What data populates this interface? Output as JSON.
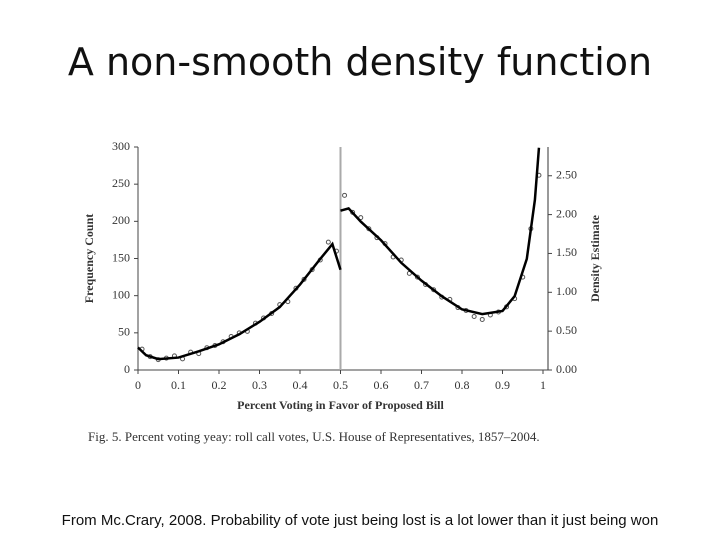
{
  "title": "A non-smooth density function",
  "footer": "From Mc.Crary, 2008. Probability of vote just being lost is a lot lower than it just being won",
  "chart_data": {
    "type": "scatter",
    "caption": "Fig. 5.  Percent voting yeay: roll call votes, U.S. House of Representatives, 1857–2004.",
    "xlabel": "Percent Voting in Favor of Proposed Bill",
    "ylabel": "Frequency Count",
    "y2label": "Density Estimate",
    "xlim": [
      0,
      1
    ],
    "xticks": [
      0,
      0.1,
      0.2,
      0.3,
      0.4,
      0.5,
      0.6,
      0.7,
      0.8,
      0.9,
      1
    ],
    "ylim": [
      0,
      300
    ],
    "yticks": [
      0,
      50,
      100,
      150,
      200,
      250,
      300
    ],
    "y2lim": [
      0,
      2.87
    ],
    "y2ticks": [
      {
        "value": 0,
        "label": "0.00"
      },
      {
        "value": 0.5,
        "label": "0.50"
      },
      {
        "value": 1,
        "label": "1.00"
      },
      {
        "value": 1.5,
        "label": "1.50"
      },
      {
        "value": 2,
        "label": "2.00"
      },
      {
        "value": 2.5,
        "label": "2.50"
      }
    ],
    "vlines": [
      0.5
    ],
    "series": [
      {
        "type": "scatter",
        "color": "#555555",
        "x": [
          0.01,
          0.03,
          0.05,
          0.07,
          0.09,
          0.11,
          0.13,
          0.15,
          0.17,
          0.19,
          0.21,
          0.23,
          0.25,
          0.27,
          0.29,
          0.31,
          0.33,
          0.35,
          0.37,
          0.39,
          0.41,
          0.43,
          0.45,
          0.47,
          0.49,
          0.51,
          0.53,
          0.55,
          0.57,
          0.59,
          0.61,
          0.63,
          0.65,
          0.67,
          0.69,
          0.71,
          0.73,
          0.75,
          0.77,
          0.79,
          0.81,
          0.83,
          0.85,
          0.87,
          0.89,
          0.91,
          0.93,
          0.95,
          0.97,
          0.99
        ],
        "values": [
          28,
          18,
          14,
          16,
          19,
          15,
          24,
          22,
          30,
          33,
          38,
          45,
          50,
          52,
          63,
          70,
          76,
          88,
          92,
          110,
          122,
          135,
          148,
          172,
          160,
          235,
          212,
          205,
          190,
          178,
          170,
          152,
          148,
          130,
          125,
          115,
          108,
          98,
          95,
          84,
          80,
          72,
          68,
          74,
          78,
          85,
          96,
          125,
          190,
          262
        ]
      },
      {
        "type": "line",
        "axis": "y2",
        "color": "#000000",
        "x": [
          0,
          0.02,
          0.05,
          0.1,
          0.15,
          0.2,
          0.25,
          0.3,
          0.35,
          0.4,
          0.45,
          0.48,
          0.5,
          0.5,
          0.5,
          0.52,
          0.55,
          0.6,
          0.65,
          0.7,
          0.75,
          0.8,
          0.85,
          0.9,
          0.93,
          0.96,
          0.98,
          0.99
        ],
        "values": [
          0.29,
          0.19,
          0.14,
          0.16,
          0.24,
          0.33,
          0.46,
          0.62,
          0.81,
          1.1,
          1.43,
          1.62,
          1.29,
          null,
          2.05,
          2.08,
          1.91,
          1.67,
          1.38,
          1.15,
          0.95,
          0.78,
          0.72,
          0.76,
          0.95,
          1.43,
          2.19,
          2.86
        ]
      }
    ]
  }
}
